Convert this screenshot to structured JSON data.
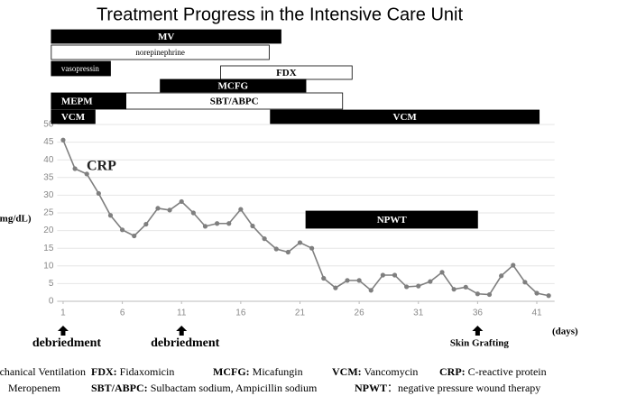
{
  "chart_data": {
    "type": "line",
    "title": "Treatment Progress in the Intensive Care Unit",
    "y_label": "(mg/dL)",
    "x_label": "(days)",
    "series_label": "CRP",
    "x": [
      1,
      2,
      3,
      4,
      5,
      6,
      7,
      8,
      9,
      10,
      11,
      12,
      13,
      14,
      15,
      16,
      17,
      18,
      19,
      20,
      21,
      22,
      23,
      24,
      25,
      26,
      27,
      28,
      29,
      30,
      31,
      32,
      33,
      34,
      35,
      36,
      37,
      38,
      39,
      40,
      41,
      42
    ],
    "series": [
      {
        "name": "CRP",
        "color": "#7f7f7f",
        "values": [
          45.6,
          37.5,
          36,
          30.5,
          24.3,
          20.2,
          18.5,
          21.8,
          26.3,
          25.8,
          28.2,
          25,
          21.2,
          22,
          22,
          26,
          21.3,
          17.7,
          14.8,
          13.9,
          16.6,
          15,
          6.5,
          3.8,
          5.9,
          5.9,
          3.1,
          7.4,
          7.4,
          4.1,
          4.3,
          5.6,
          8.2,
          3.4,
          4,
          2.1,
          1.9,
          7.2,
          10.2,
          5.4,
          2.3,
          1.6
        ]
      }
    ],
    "xlim": [
      0.5,
      42.5
    ],
    "xticks": [
      1,
      6,
      11,
      16,
      21,
      26,
      31,
      36,
      41
    ],
    "ylim": [
      0,
      50
    ],
    "yticks": [
      0,
      5,
      10,
      15,
      20,
      25,
      30,
      35,
      40,
      45,
      50
    ],
    "grid": true,
    "annotations": [
      {
        "text": "debriedment",
        "x": 1
      },
      {
        "text": "debriedment",
        "x": 11
      },
      {
        "text": "Skin Grafting",
        "x": 36
      }
    ]
  },
  "timeline": [
    {
      "label": "MV",
      "start": 0,
      "end": 19.4,
      "color": "#000000"
    },
    {
      "label": "norepinephrine",
      "start": 0,
      "end": 18.4,
      "color": "#ffffff"
    },
    {
      "label": "vasopressin",
      "start": 0,
      "end": 5,
      "color": "#000000"
    },
    {
      "label": "FDX",
      "start": 14.3,
      "end": 25.4,
      "color": "#ffffff"
    },
    {
      "label": "MCFG",
      "start": 9.2,
      "end": 21.5,
      "color": "#000000"
    },
    {
      "label": "SBT/ABPC",
      "start": 6.3,
      "end": 24.6,
      "color": "#ffffff"
    },
    {
      "label": "MEPM",
      "start": 0,
      "end": 6.3,
      "color": "#000000"
    },
    {
      "label": "VCM",
      "start": 0,
      "end": 3.7,
      "color": "#000000"
    },
    {
      "label": "VCM",
      "start": 18.5,
      "end": 41.2,
      "color": "#000000"
    },
    {
      "label": "NPWT",
      "start": 21.5,
      "end": 36,
      "color": "#000000"
    }
  ],
  "legend": [
    [
      {
        "text": "Mechanical Ventilation"
      },
      {
        "abbr": "FDX:",
        "text": " Fidaxomicin"
      },
      {
        "abbr": "MCFG:",
        "text": " Micafungin"
      },
      {
        "abbr": "VCM:",
        "text": " Vancomycin"
      },
      {
        "abbr": "CRP:",
        "text": " C-reactive protein"
      }
    ],
    [
      {
        "text": "Meropenem"
      },
      {
        "abbr": "SBT/ABPC:",
        "text": " Sulbactam sodium, Ampicillin sodium"
      },
      {
        "abbr": "NPWT",
        "text": "：negative pressure wound therapy"
      }
    ]
  ]
}
